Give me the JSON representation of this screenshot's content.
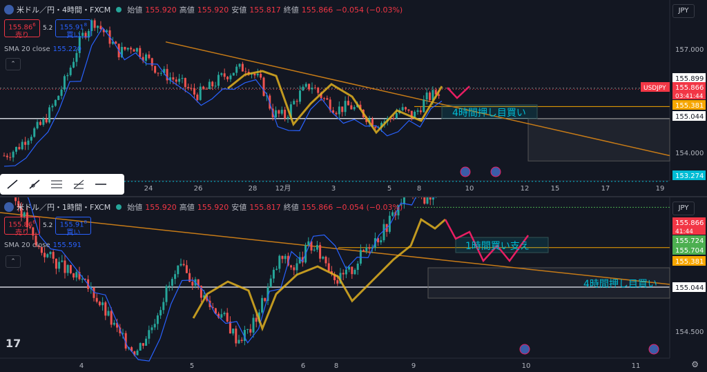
{
  "pane_top": {
    "symbol": "米ドル／円・4時間・FXCM",
    "ohlc": {
      "o_lbl": "始値",
      "o": "155.920",
      "h_lbl": "高値",
      "h": "155.920",
      "l_lbl": "安値",
      "l": "155.817",
      "c_lbl": "終値",
      "c": "155.866",
      "chg": "−0.054 (−0.03%)"
    },
    "sell": {
      "price": "155.86",
      "sup": "6",
      "label": "売り"
    },
    "spread": "5.2",
    "buy": {
      "price": "155.91",
      "sup": "8",
      "label": "買い"
    },
    "sma": {
      "label": "SMA 20 close",
      "value": "155.220"
    },
    "currency": "JPY",
    "axis_labels": [
      {
        "text": "157.000",
        "kind": "tick"
      },
      {
        "text": "155.899",
        "kind": "white"
      },
      {
        "text": "USDJPY",
        "kind": "sym"
      },
      {
        "text": "155.866",
        "kind": "red"
      },
      {
        "text": "03:41:44",
        "kind": "red-sub"
      },
      {
        "text": "155.381",
        "kind": "orange"
      },
      {
        "text": "155.044",
        "kind": "white"
      },
      {
        "text": "154.000",
        "kind": "tick"
      },
      {
        "text": "153.274",
        "kind": "cyan"
      }
    ],
    "x_labels": [
      "24",
      "26",
      "28",
      "12月",
      "3",
      "5",
      "8",
      "10",
      "12",
      "15",
      "17",
      "19"
    ],
    "annotation": "4時間押し目買い"
  },
  "pane_bottom": {
    "symbol": "米ドル／円・1時間・FXCM",
    "ohlc": {
      "o_lbl": "始値",
      "o": "155.920",
      "h_lbl": "高値",
      "h": "155.920",
      "l_lbl": "安値",
      "l": "155.817",
      "c_lbl": "終値",
      "c": "155.866",
      "chg": "−0.054 (−0.03%)"
    },
    "sell": {
      "price": "155.86",
      "sup": "6",
      "label": "売り"
    },
    "spread": "5.2",
    "buy": {
      "price": "155.91",
      "sup": "8",
      "label": "買い"
    },
    "sma": {
      "label": "SMA 20 close",
      "value": "155.591"
    },
    "currency": "JPY",
    "axis_labels": [
      {
        "text": "155.866",
        "kind": "red"
      },
      {
        "text": "41:44",
        "kind": "red-sub"
      },
      {
        "text": "155.724",
        "kind": "green"
      },
      {
        "text": "155.704",
        "kind": "green"
      },
      {
        "text": "155.381",
        "kind": "orange"
      },
      {
        "text": "155.044",
        "kind": "white"
      },
      {
        "text": "154.500",
        "kind": "tick"
      }
    ],
    "x_labels": [
      "4",
      "5",
      "6",
      "8",
      "9",
      "10",
      "11"
    ],
    "annotation_1": "1時間買い支え",
    "annotation_2": "4時間押し目買い"
  },
  "chart_data": [
    {
      "type": "candlestick",
      "title": "米ドル／円・4時間・FXCM",
      "y_ticks": [
        "157.000",
        "154.000"
      ],
      "last": "155.866",
      "levels": [
        "155.899",
        "155.381",
        "155.044",
        "153.274"
      ],
      "sma20": "155.220"
    },
    {
      "type": "candlestick",
      "title": "米ドル／円・1時間・FXCM",
      "y_ticks": [
        "154.500"
      ],
      "last": "155.866",
      "levels": [
        "155.724",
        "155.704",
        "155.381",
        "155.044"
      ],
      "sma20": "155.591"
    }
  ]
}
